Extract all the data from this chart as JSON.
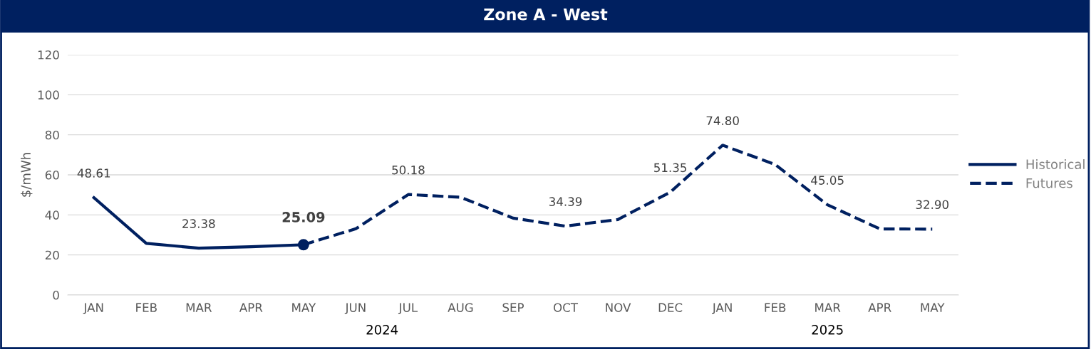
{
  "chart_data": {
    "type": "line",
    "title": "Zone A - West",
    "ylabel": "$/mWh",
    "categories": [
      "JAN",
      "FEB",
      "MAR",
      "APR",
      "MAY",
      "JUN",
      "JUL",
      "AUG",
      "SEP",
      "OCT",
      "NOV",
      "DEC",
      "JAN",
      "FEB",
      "MAR",
      "APR",
      "MAY"
    ],
    "series": [
      {
        "name": "Historical",
        "color": "#002060",
        "line_style": "solid",
        "values": [
          48.61,
          25.8,
          23.38,
          24.1,
          25.09,
          null,
          null,
          null,
          null,
          null,
          null,
          null,
          null,
          null,
          null,
          null,
          null
        ],
        "value_labels": [
          "48.61",
          null,
          "23.38",
          null,
          null,
          null,
          null,
          null,
          null,
          null,
          null,
          null,
          null,
          null,
          null,
          null,
          null
        ]
      },
      {
        "name": "Futures",
        "color": "#002060",
        "line_style": "dashed",
        "values": [
          null,
          null,
          null,
          null,
          25.09,
          33.1,
          50.18,
          48.8,
          38.4,
          34.39,
          37.7,
          51.35,
          74.8,
          65.2,
          45.05,
          33.0,
          32.9
        ],
        "value_labels": [
          null,
          null,
          null,
          null,
          null,
          null,
          "50.18",
          null,
          null,
          "34.39",
          null,
          "51.35",
          "74.80",
          null,
          "45.05",
          null,
          "32.90"
        ]
      },
      {
        "type": "scatter",
        "color": "#002060",
        "marker": "circle",
        "values": [
          null,
          null,
          null,
          null,
          25.09,
          null,
          null,
          null,
          null,
          null,
          null,
          null,
          null,
          null,
          null,
          null,
          null
        ],
        "value_labels": [
          null,
          null,
          null,
          null,
          "25.09",
          null,
          null,
          null,
          null,
          null,
          null,
          null,
          null,
          null,
          null,
          null,
          null
        ]
      }
    ],
    "ylim": [
      0,
      120
    ],
    "yticks": [
      0,
      20,
      40,
      60,
      80,
      100,
      120
    ],
    "grid": "y",
    "legend": "right",
    "annotations": [
      "2024",
      "2025"
    ]
  }
}
